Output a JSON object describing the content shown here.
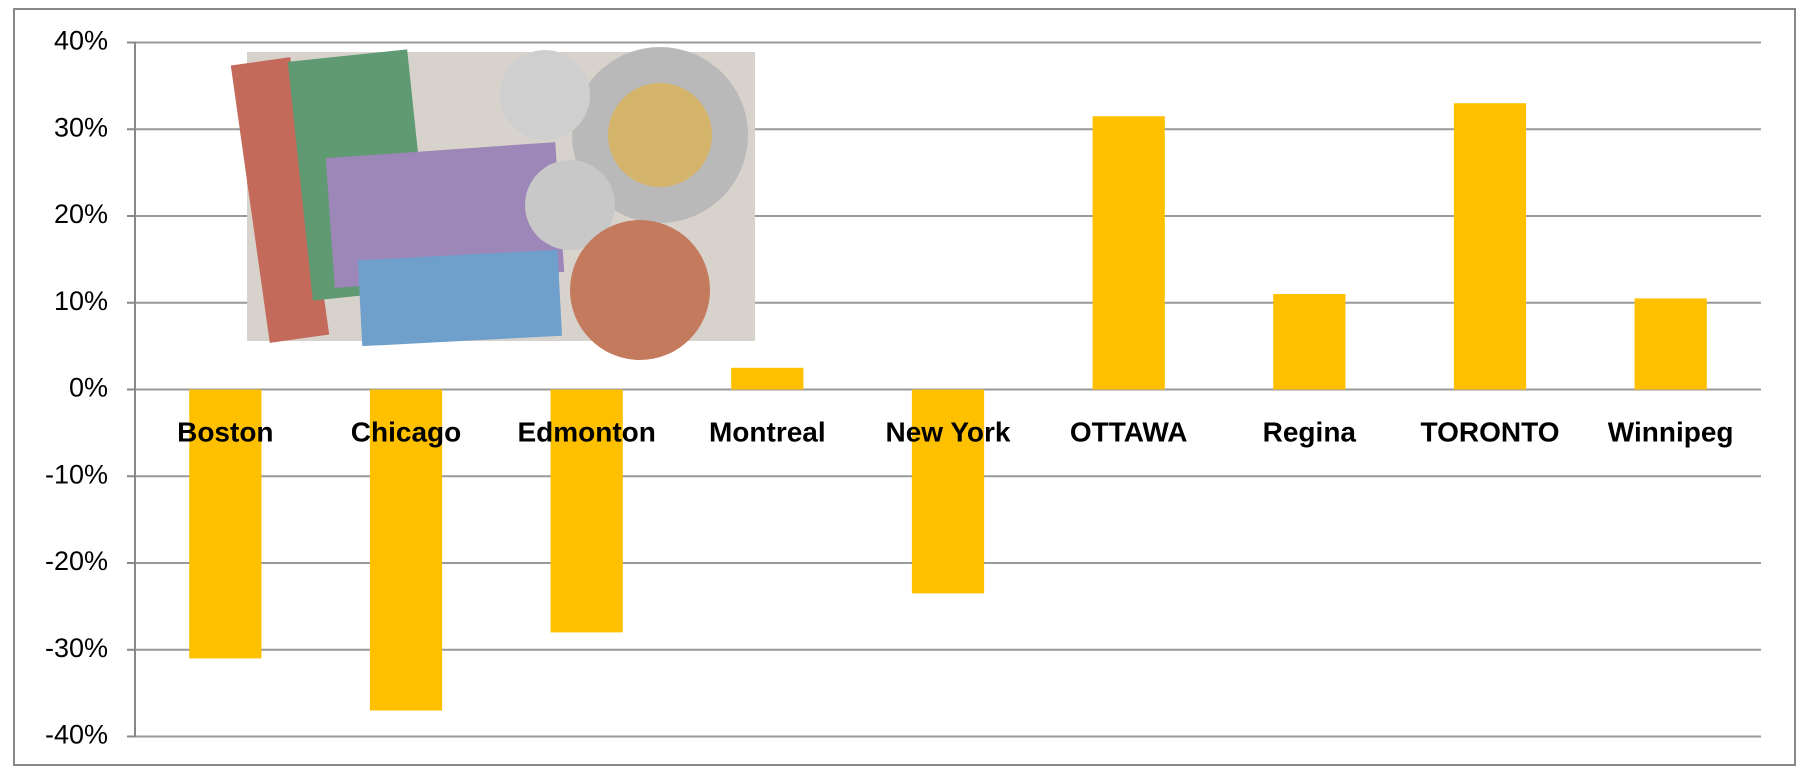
{
  "chart_data": {
    "type": "bar",
    "categories": [
      "Boston",
      "Chicago",
      "Edmonton",
      "Montreal",
      "New York",
      "OTTAWA",
      "Regina",
      "TORONTO",
      "Winnipeg"
    ],
    "values": [
      -31,
      -37,
      -28,
      2.5,
      -23.5,
      31.5,
      11,
      33,
      10.5
    ],
    "color": "#ffc000",
    "ylim": [
      -40,
      40
    ],
    "yticks": [
      {
        "value": -40,
        "label": "-40%"
      },
      {
        "value": -30,
        "label": "-30%"
      },
      {
        "value": -20,
        "label": "-20%"
      },
      {
        "value": -10,
        "label": "-10%"
      },
      {
        "value": 0,
        "label": "0%"
      },
      {
        "value": 10,
        "label": "10%"
      },
      {
        "value": 20,
        "label": "20%"
      },
      {
        "value": 30,
        "label": "30%"
      },
      {
        "value": 40,
        "label": "40%"
      }
    ],
    "grid": true
  }
}
